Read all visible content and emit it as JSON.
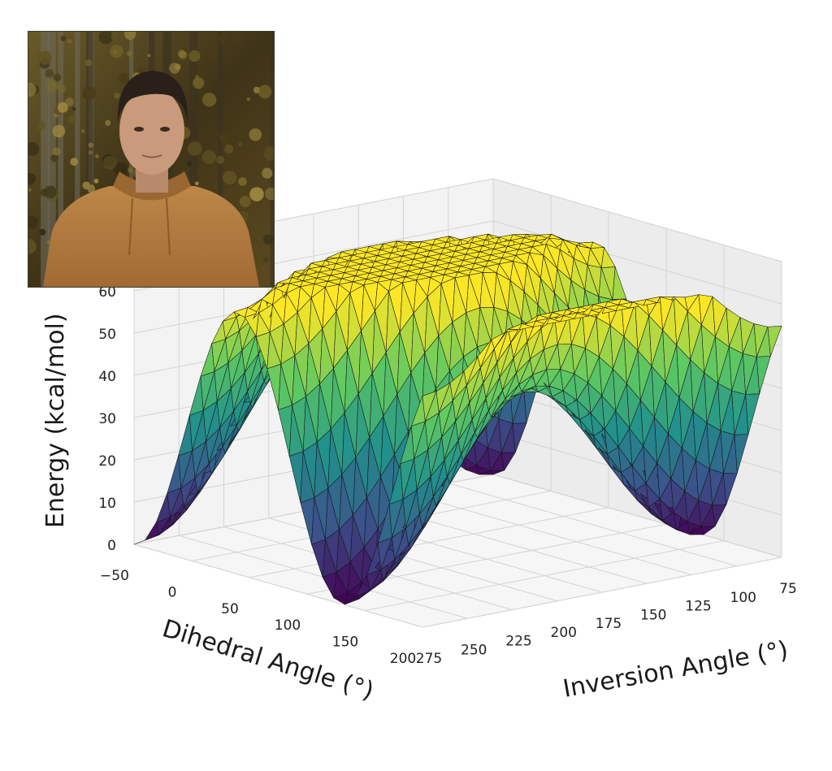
{
  "chart_data": {
    "type": "surface3d",
    "colormap": "viridis",
    "colormap_stops": [
      "#440154",
      "#3b528b",
      "#21918c",
      "#5ec962",
      "#fde725"
    ],
    "xlabel": "Dihedral Angle (°)",
    "ylabel": "Inversion Angle (°)",
    "zlabel": "Energy (kcal/mol)",
    "xlim": [
      -50,
      200
    ],
    "ylim": [
      75,
      275
    ],
    "zlim": [
      0,
      60
    ],
    "x_ticks": [
      "−50",
      "0",
      "50",
      "100",
      "150",
      "200"
    ],
    "y_ticks": [
      "75",
      "100",
      "125",
      "150",
      "175",
      "200",
      "225",
      "250",
      "275"
    ],
    "z_ticks": [
      "0",
      "10",
      "20",
      "30",
      "40",
      "50",
      "60"
    ],
    "grid": true,
    "minima": [
      {
        "dihedral": 0,
        "inversion": 275,
        "energy": 0
      },
      {
        "dihedral": 180,
        "inversion": 275,
        "energy": 0
      },
      {
        "dihedral": 180,
        "inversion": 75,
        "energy": 0
      }
    ],
    "surface_max_energy": 65
  },
  "photo": {
    "description": "portrait",
    "colors": {
      "background": "#5a4a22",
      "hoodie": "#b07a40",
      "skin": "#c99a7c",
      "hair": "#2b2019"
    }
  }
}
